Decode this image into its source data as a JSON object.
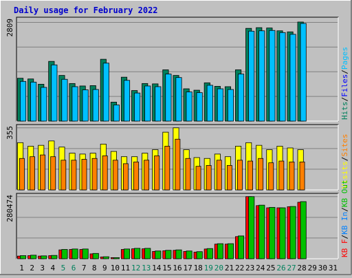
{
  "title": "Daily usage for February 2022",
  "colors": {
    "background": "#c0c0c0",
    "plot": "#c0c0c0",
    "title": "#0000cc",
    "hits": "#00805c",
    "files": "#0000ff",
    "pages": "#00c0ff",
    "visits": "#ffff00",
    "sites": "#ff8000",
    "kbin": "#0080ff",
    "kbout": "#00c000",
    "kbf": "#ff0000",
    "weekend": "#00805c",
    "weekday": "#000080",
    "grid": "#808080"
  },
  "chart_data": [
    {
      "type": "bar",
      "name": "hits-files-pages",
      "ymax_label": "2809",
      "ylim": [
        0,
        2809
      ],
      "legend": [
        {
          "label": "Hits",
          "color": "#00805c"
        },
        {
          "label": "Files",
          "color": "#0000ff"
        },
        {
          "label": "Pages",
          "color": "#00c0ff"
        }
      ],
      "categories": [
        "1",
        "2",
        "3",
        "4",
        "5",
        "6",
        "7",
        "8",
        "9",
        "10",
        "11",
        "12",
        "13",
        "14",
        "15",
        "16",
        "17",
        "18",
        "19",
        "20",
        "21",
        "22",
        "23",
        "24",
        "25",
        "26",
        "27",
        "28",
        "29",
        "30",
        "31"
      ],
      "series": [
        {
          "name": "Hits",
          "values": [
            1220,
            1200,
            1050,
            1700,
            1300,
            1070,
            1000,
            1010,
            1760,
            540,
            1250,
            870,
            1070,
            1060,
            1460,
            1300,
            920,
            880,
            1090,
            990,
            980,
            1460,
            2640,
            2660,
            2650,
            2570,
            2540,
            2820,
            0,
            0,
            0
          ]
        },
        {
          "name": "Pages",
          "values": [
            1130,
            1110,
            960,
            1600,
            1190,
            980,
            890,
            900,
            1650,
            460,
            1160,
            800,
            1000,
            980,
            1340,
            1240,
            830,
            810,
            1020,
            920,
            900,
            1340,
            2560,
            2570,
            2580,
            2520,
            2470,
            2780,
            0,
            0,
            0
          ]
        }
      ]
    },
    {
      "type": "bar",
      "name": "visits-sites",
      "ymax_label": "355",
      "ylim": [
        0,
        355
      ],
      "legend": [
        {
          "label": "Visits",
          "color": "#ffff00"
        },
        {
          "label": "Sites",
          "color": "#ff8000"
        }
      ],
      "categories": [
        "1",
        "2",
        "3",
        "4",
        "5",
        "6",
        "7",
        "8",
        "9",
        "10",
        "11",
        "12",
        "13",
        "14",
        "15",
        "16",
        "17",
        "18",
        "19",
        "20",
        "21",
        "22",
        "23",
        "24",
        "25",
        "26",
        "27",
        "28",
        "29",
        "30",
        "31"
      ],
      "series": [
        {
          "name": "Visits",
          "values": [
            270,
            250,
            255,
            280,
            245,
            210,
            205,
            210,
            262,
            220,
            190,
            190,
            210,
            230,
            330,
            355,
            230,
            185,
            180,
            205,
            190,
            250,
            270,
            255,
            230,
            250,
            240,
            230,
            0,
            0,
            0
          ]
        },
        {
          "name": "Sites",
          "values": [
            180,
            190,
            200,
            190,
            170,
            170,
            175,
            180,
            195,
            170,
            150,
            160,
            170,
            195,
            250,
            290,
            180,
            135,
            140,
            170,
            140,
            170,
            165,
            180,
            155,
            165,
            160,
            160,
            0,
            0,
            0
          ]
        }
      ]
    },
    {
      "type": "bar",
      "name": "kbytes",
      "ymax_label": "280474",
      "ylim": [
        0,
        280474
      ],
      "legend": [
        {
          "label": "KB F",
          "color": "#ff0000"
        },
        {
          "label": "KB In",
          "color": "#0080ff"
        },
        {
          "label": "KB Out",
          "color": "#00c000"
        }
      ],
      "categories": [
        "1",
        "2",
        "3",
        "4",
        "5",
        "6",
        "7",
        "8",
        "9",
        "10",
        "11",
        "12",
        "13",
        "14",
        "15",
        "16",
        "17",
        "18",
        "19",
        "20",
        "21",
        "22",
        "23",
        "24",
        "25",
        "26",
        "27",
        "28",
        "29",
        "30",
        "31"
      ],
      "series": [
        {
          "name": "KB F",
          "values": [
            12000,
            14000,
            12000,
            14000,
            40000,
            42000,
            42000,
            22000,
            8000,
            5000,
            42000,
            45000,
            45000,
            33000,
            36000,
            38000,
            33000,
            30000,
            44000,
            66000,
            66000,
            100000,
            280474,
            240000,
            230000,
            230000,
            235000,
            255000,
            0,
            0,
            0
          ]
        },
        {
          "name": "KB Out",
          "values": [
            14000,
            16000,
            13000,
            15000,
            42000,
            44000,
            44000,
            24000,
            9000,
            5000,
            44000,
            47000,
            47000,
            35000,
            38000,
            40000,
            35000,
            32000,
            46000,
            68000,
            68000,
            103000,
            280474,
            242000,
            232000,
            230000,
            236000,
            258000,
            0,
            0,
            0
          ]
        }
      ]
    }
  ],
  "x_labels": [
    {
      "label": "1",
      "weekend": false
    },
    {
      "label": "2",
      "weekend": false
    },
    {
      "label": "3",
      "weekend": false
    },
    {
      "label": "4",
      "weekend": false
    },
    {
      "label": "5",
      "weekend": true
    },
    {
      "label": "6",
      "weekend": true
    },
    {
      "label": "7",
      "weekend": false
    },
    {
      "label": "8",
      "weekend": false
    },
    {
      "label": "9",
      "weekend": false
    },
    {
      "label": "10",
      "weekend": false
    },
    {
      "label": "11",
      "weekend": false
    },
    {
      "label": "12",
      "weekend": true
    },
    {
      "label": "13",
      "weekend": true
    },
    {
      "label": "14",
      "weekend": false
    },
    {
      "label": "15",
      "weekend": false
    },
    {
      "label": "16",
      "weekend": false
    },
    {
      "label": "17",
      "weekend": false
    },
    {
      "label": "18",
      "weekend": false
    },
    {
      "label": "19",
      "weekend": true
    },
    {
      "label": "20",
      "weekend": true
    },
    {
      "label": "21",
      "weekend": false
    },
    {
      "label": "22",
      "weekend": false
    },
    {
      "label": "23",
      "weekend": false
    },
    {
      "label": "24",
      "weekend": false
    },
    {
      "label": "25",
      "weekend": false
    },
    {
      "label": "26",
      "weekend": true
    },
    {
      "label": "27",
      "weekend": true
    },
    {
      "label": "28",
      "weekend": false
    },
    {
      "label": "29",
      "weekend": false
    },
    {
      "label": "30",
      "weekend": false
    },
    {
      "label": "31",
      "weekend": false
    }
  ]
}
